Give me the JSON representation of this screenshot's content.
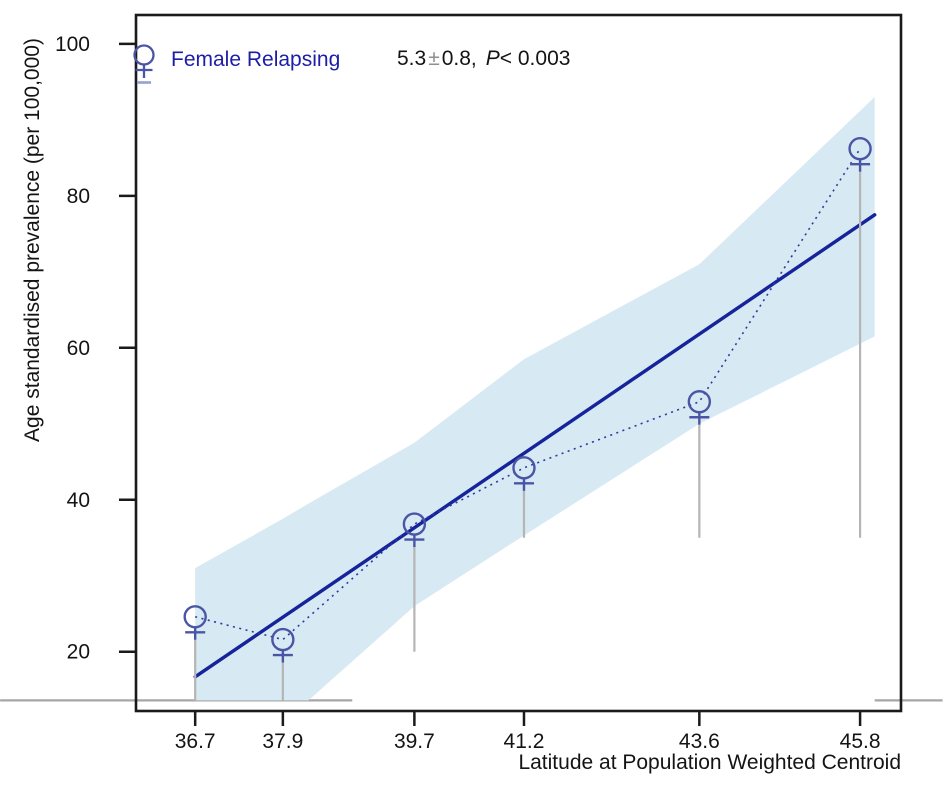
{
  "figure": {
    "legend": {
      "label": "Female Relapsing",
      "stat": {
        "slope": "5.3",
        "pm": "±",
        "se": "0.8,",
        "p_label": "P",
        "p_rest": "< 0.003"
      }
    },
    "axes": {
      "y_title": "Age standardised prevalence (per 100,000)",
      "x_title": "Latitude at Population Weighted Centroid"
    }
  },
  "chart_data": {
    "type": "scatter",
    "title": "",
    "xlabel": "Latitude at Population Weighted Centroid",
    "ylabel": "Age standardised prevalence (per 100,000)",
    "xlim": [
      35.89,
      46.36
    ],
    "ylim": [
      12.2,
      103.8
    ],
    "grid": false,
    "legend_position": "top-left",
    "x_ticks": [
      36.7,
      37.9,
      39.7,
      41.2,
      43.6,
      45.8
    ],
    "x_tick_labels": [
      "36.7",
      "37.9",
      "39.7",
      "41.2",
      "43.6",
      "45.8"
    ],
    "y_ticks": [
      20,
      40,
      60,
      80,
      100
    ],
    "y_tick_labels": [
      "20",
      "40",
      "60",
      "80",
      "100"
    ],
    "annotation": "5.3 ± 0.8, P< 0.003",
    "series": [
      {
        "name": "Female Relapsing",
        "type": "points",
        "marker": "female-symbol",
        "x": [
          36.7,
          37.9,
          39.7,
          41.2,
          43.6,
          45.8
        ],
        "y": [
          24.6,
          21.6,
          36.8,
          44.2,
          52.9,
          86.2
        ],
        "spike_bottom": [
          13.6,
          13.6,
          20,
          35,
          35,
          35
        ],
        "connector": "dotted"
      },
      {
        "name": "regression fit",
        "type": "line",
        "x": [
          36.7,
          46.0
        ],
        "y": [
          16.7,
          77.5
        ]
      }
    ],
    "band": {
      "x": [
        36.7,
        37.9,
        38.25,
        39.7,
        41.2,
        43.6,
        46.0
      ],
      "upper": [
        31.0,
        37.5,
        39.5,
        47.5,
        58.5,
        71.0,
        93.0
      ],
      "lower": [
        13.6,
        13.6,
        13.6,
        26.0,
        35.3,
        50.0,
        61.5
      ]
    },
    "reference_line": {
      "value": 13.6,
      "segments": [
        [
          34.03,
          38.85
        ],
        [
          46.0,
          46.93
        ]
      ]
    },
    "colors": {
      "band": "#d7e9f2",
      "fit_line": "#16249b",
      "dotted_line": "#2b3aa0",
      "marker": "#4a55a6",
      "spike": "#b5b5b5",
      "reference": "#a6a6a6",
      "axis": "#1a1a1a",
      "legend_text": "#1d1da8",
      "pm_gray": "#8f8f8f"
    }
  }
}
